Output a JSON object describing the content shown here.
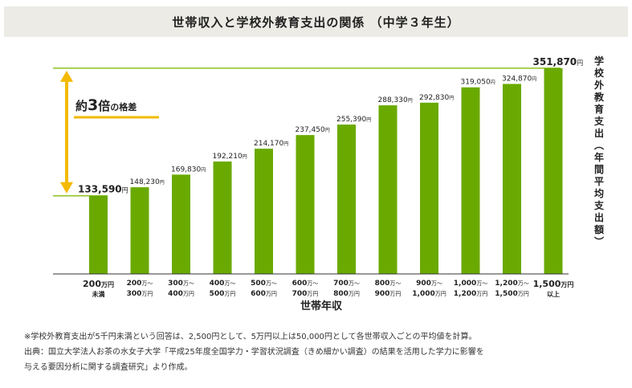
{
  "title": "世帯収入と学校外教育支出の関係 （中学３年生）",
  "chart_data": {
    "type": "bar",
    "xlabel": "世帯年収",
    "ylabel": "学校外教育支出（年間平均支出額）",
    "unit": "円",
    "categories": [
      [
        "200",
        "万円",
        "未満"
      ],
      [
        "200",
        "万〜",
        "300",
        "万円"
      ],
      [
        "300",
        "万〜",
        "400",
        "万円"
      ],
      [
        "400",
        "万〜",
        "500",
        "万円"
      ],
      [
        "500",
        "万〜",
        "600",
        "万円"
      ],
      [
        "600",
        "万〜",
        "700",
        "万円"
      ],
      [
        "700",
        "万〜",
        "800",
        "万円"
      ],
      [
        "800",
        "万〜",
        "900",
        "万円"
      ],
      [
        "900",
        "万〜",
        "1,000",
        "万円"
      ],
      [
        "1,000",
        "万〜",
        "1,200",
        "万円"
      ],
      [
        "1,200",
        "万〜",
        "1,500",
        "万円"
      ],
      [
        "1,500",
        "万円",
        "以上"
      ]
    ],
    "values": [
      133590,
      148230,
      169830,
      192210,
      214170,
      237450,
      255390,
      288330,
      292830,
      319050,
      324870,
      351870
    ],
    "value_labels": [
      "133,590",
      "148,230",
      "169,830",
      "192,210",
      "214,170",
      "237,450",
      "255,390",
      "288,330",
      "292,830",
      "319,050",
      "324,870",
      "351,870"
    ],
    "annotation": {
      "text_prefix": "約",
      "number": "3",
      "suffix": "倍",
      "tail": "の格差"
    },
    "bar_color": "#6aaa00",
    "arrow_color": "#f3ba00",
    "ref_line_color": "#8dc21f"
  },
  "notes": [
    "※学校外教育支出が5千円未満という回答は、2,500円として、5万円以上は50,000円として各世帯収入ごとの平均値を計算。",
    "出典：国立大学法人お茶の水女子大学「平成25年度全国学力・学習状況調査（きめ細かい調査）の結果を活用した学力に影響を",
    "与える要因分析に関する調査研究」より作成。"
  ]
}
